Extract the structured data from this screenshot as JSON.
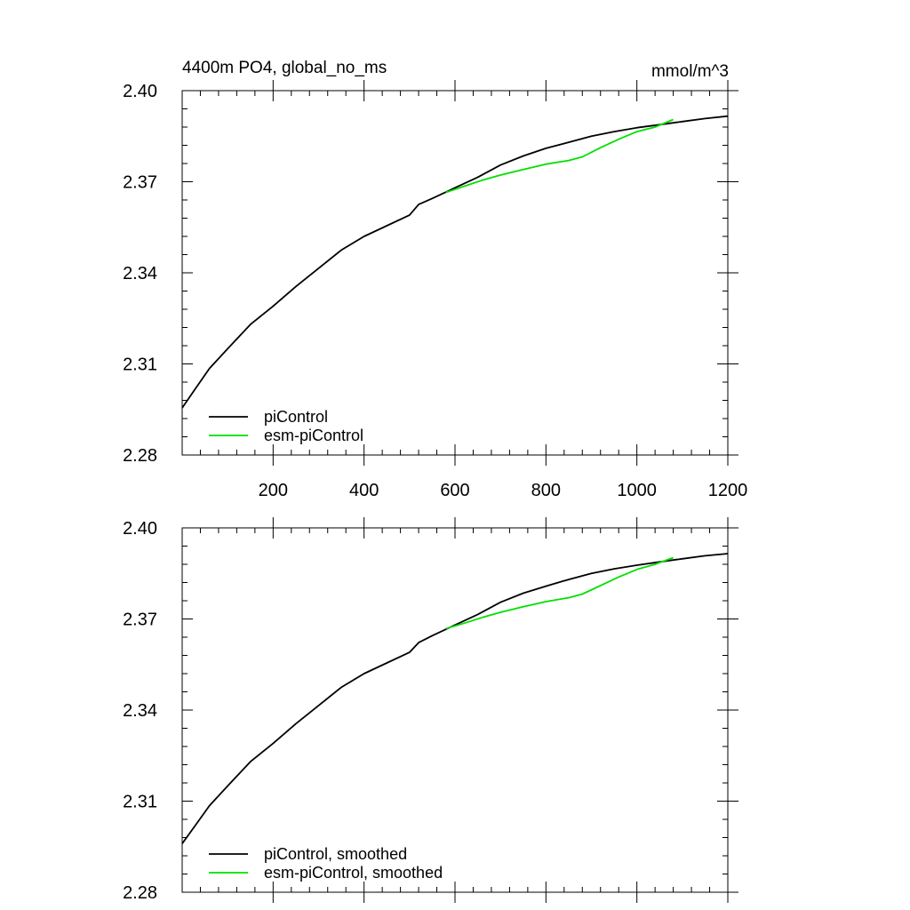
{
  "figure": {
    "title_left": "4400m PO4, global_no_ms",
    "title_right": "mmol/m^3"
  },
  "chart_data": [
    {
      "type": "line",
      "xlim": [
        0,
        1200
      ],
      "ylim": [
        2.28,
        2.4
      ],
      "x_ticks": [
        200,
        400,
        600,
        800,
        1000,
        1200
      ],
      "x_tick_labels": [
        "200",
        "400",
        "600",
        "800",
        "1000",
        "1200"
      ],
      "y_ticks": [
        2.28,
        2.31,
        2.34,
        2.37,
        2.4
      ],
      "y_tick_labels": [
        "2.28",
        "2.31",
        "2.34",
        "2.37",
        "2.40"
      ],
      "grid": false,
      "legend_position": "bottom-left",
      "series": [
        {
          "name": "piControl",
          "color": "#000000",
          "x": [
            0,
            30,
            60,
            100,
            150,
            200,
            250,
            300,
            350,
            400,
            450,
            500,
            520,
            550,
            600,
            650,
            700,
            750,
            800,
            850,
            900,
            950,
            1000,
            1050,
            1100,
            1150,
            1200
          ],
          "y": [
            2.2955,
            2.302,
            2.3085,
            2.315,
            2.323,
            2.329,
            2.3355,
            2.3415,
            2.3475,
            2.352,
            2.3555,
            2.359,
            2.3625,
            2.3645,
            2.368,
            2.3715,
            2.3755,
            2.3785,
            2.381,
            2.383,
            2.385,
            2.3865,
            2.3878,
            2.3888,
            2.3898,
            2.3908,
            2.3916
          ]
        },
        {
          "name": "esm-piControl",
          "color": "#00e000",
          "x": [
            580,
            620,
            660,
            700,
            750,
            800,
            850,
            880,
            920,
            960,
            1000,
            1040,
            1080
          ],
          "y": [
            2.3665,
            2.3685,
            2.3705,
            2.3722,
            2.374,
            2.3758,
            2.377,
            2.3782,
            2.3812,
            2.384,
            2.3865,
            2.388,
            2.3905
          ]
        }
      ]
    },
    {
      "type": "line",
      "xlim": [
        0,
        1200
      ],
      "ylim": [
        2.28,
        2.4
      ],
      "x_ticks": [
        200,
        400,
        600,
        800,
        1000,
        1200
      ],
      "y_ticks": [
        2.28,
        2.31,
        2.34,
        2.37,
        2.4
      ],
      "y_tick_labels": [
        "2.28",
        "2.31",
        "2.34",
        "2.37",
        "2.40"
      ],
      "grid": false,
      "legend_position": "bottom-left",
      "series": [
        {
          "name": "piControl, smoothed",
          "color": "#000000",
          "x": [
            0,
            30,
            60,
            100,
            150,
            200,
            250,
            300,
            350,
            400,
            450,
            500,
            520,
            550,
            600,
            650,
            700,
            750,
            800,
            850,
            900,
            950,
            1000,
            1050,
            1100,
            1150,
            1200
          ],
          "y": [
            2.296,
            2.3022,
            2.3085,
            2.315,
            2.323,
            2.329,
            2.3355,
            2.3415,
            2.3475,
            2.352,
            2.3555,
            2.359,
            2.3622,
            2.3645,
            2.368,
            2.3715,
            2.3755,
            2.3785,
            2.3808,
            2.383,
            2.385,
            2.3865,
            2.3877,
            2.3888,
            2.3898,
            2.3908,
            2.3915
          ]
        },
        {
          "name": "esm-piControl, smoothed",
          "color": "#00e000",
          "x": [
            580,
            620,
            660,
            700,
            750,
            800,
            850,
            880,
            920,
            960,
            1000,
            1040,
            1080
          ],
          "y": [
            2.3668,
            2.3686,
            2.3705,
            2.3722,
            2.374,
            2.3757,
            2.377,
            2.3782,
            2.381,
            2.3838,
            2.3863,
            2.388,
            2.3902
          ]
        }
      ]
    }
  ]
}
